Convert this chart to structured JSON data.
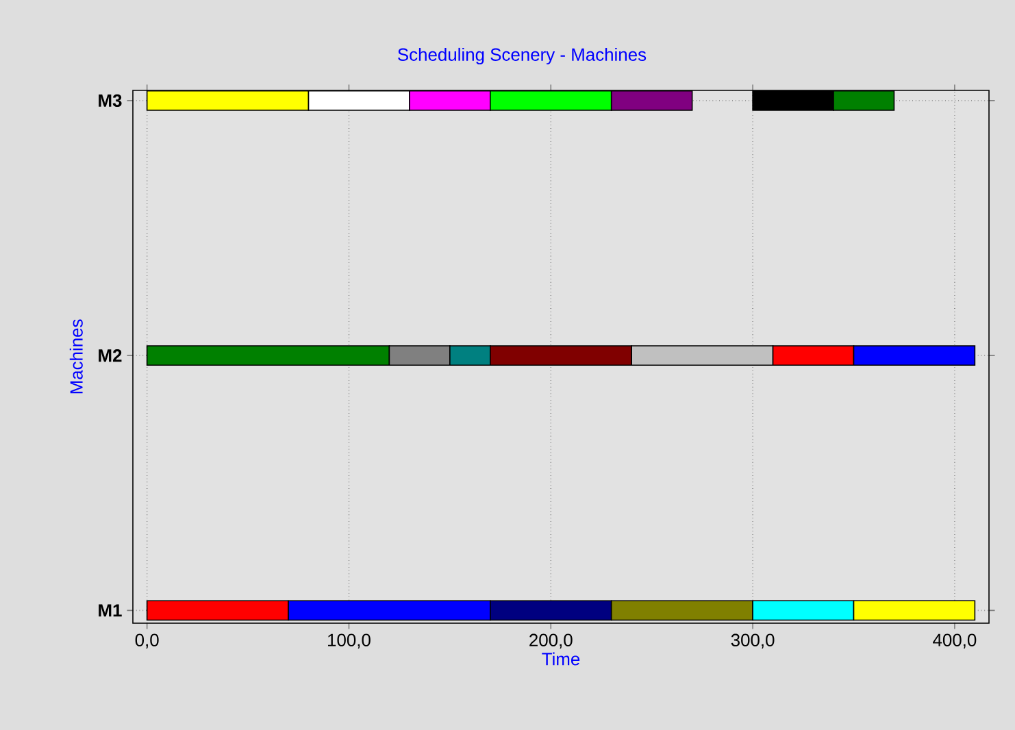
{
  "chart_data": {
    "type": "bar",
    "orientation": "horizontal",
    "title": "Scheduling Scenery - Machines",
    "xlabel": "Time",
    "ylabel": "Machines",
    "categories": [
      "M3",
      "M2",
      "M1"
    ],
    "series": [
      {
        "base": [
          0,
          0,
          0
        ],
        "values": [
          80,
          120,
          70
        ],
        "colors": [
          "#ffff00",
          "#008000",
          "#ff0000"
        ]
      },
      {
        "base": [
          80,
          120,
          70
        ],
        "values": [
          50,
          30,
          100
        ],
        "colors": [
          "#ffffff",
          "#808080",
          "#0000ff"
        ]
      },
      {
        "base": [
          130,
          150,
          170
        ],
        "values": [
          40,
          20,
          60
        ],
        "colors": [
          "#ff00ff",
          "#008080",
          "#000080"
        ]
      },
      {
        "base": [
          170,
          170,
          230
        ],
        "values": [
          60,
          70,
          70
        ],
        "colors": [
          "#00ff00",
          "#800000",
          "#808000"
        ]
      },
      {
        "base": [
          230,
          240,
          300
        ],
        "values": [
          40,
          70,
          50
        ],
        "colors": [
          "#800080",
          "#c0c0c0",
          "#00ffff"
        ]
      },
      {
        "base": [
          300,
          310,
          350
        ],
        "values": [
          40,
          40,
          60
        ],
        "colors": [
          "#000000",
          "#ff0000",
          "#ffff00"
        ]
      },
      {
        "base": [
          340,
          350,
          null
        ],
        "values": [
          30,
          60,
          null
        ],
        "colors": [
          "#008000",
          "#0000ff",
          null
        ]
      }
    ],
    "xlim": [
      -7,
      417
    ],
    "xticks": [
      {
        "value": 0,
        "label": "0,0"
      },
      {
        "value": 100,
        "label": "100,0"
      },
      {
        "value": 200,
        "label": "200,0"
      },
      {
        "value": 300,
        "label": "300,0"
      },
      {
        "value": 400,
        "label": "400,0"
      }
    ],
    "grid": true
  }
}
